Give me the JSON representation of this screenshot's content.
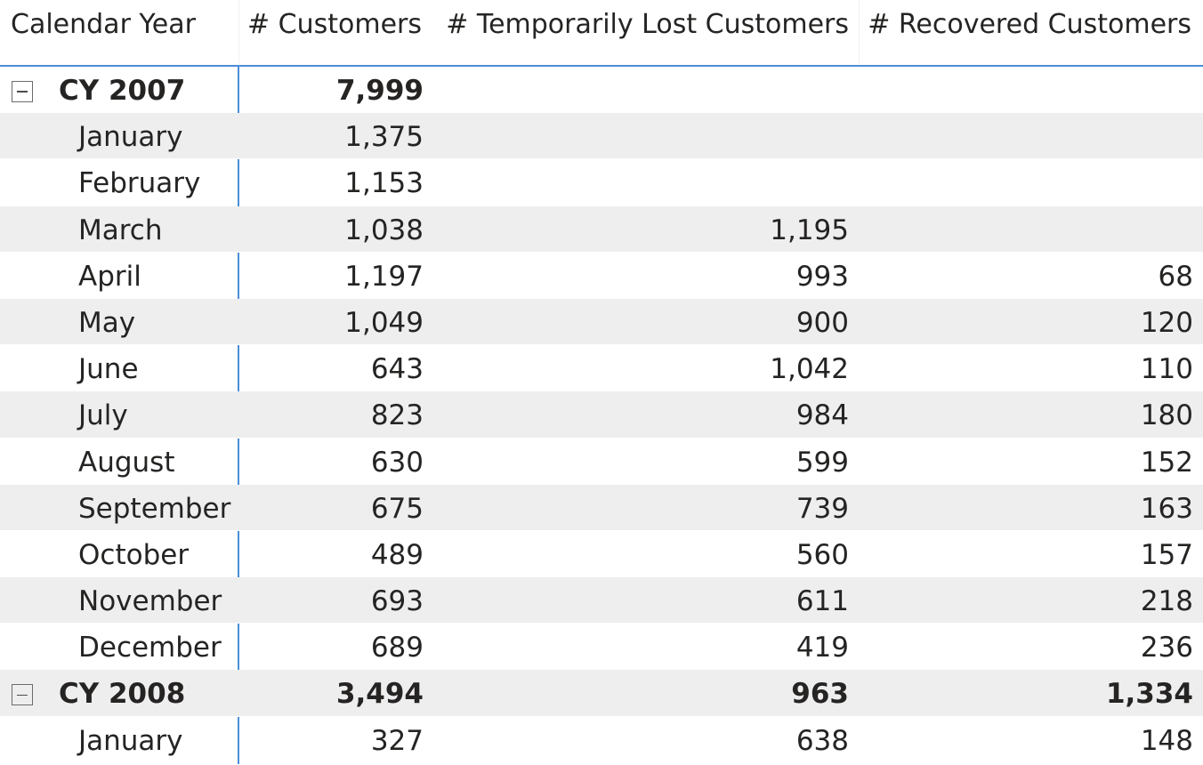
{
  "headers": {
    "calendar_year": "Calendar Year",
    "customers": "# Customers",
    "temp_lost": "# Temporarily Lost Customers",
    "recovered": "# Recovered Customers"
  },
  "rows": [
    {
      "type": "year",
      "label": "CY 2007",
      "customers": "7,999",
      "temp_lost": "",
      "recovered": ""
    },
    {
      "type": "month",
      "label": "January",
      "customers": "1,375",
      "temp_lost": "",
      "recovered": ""
    },
    {
      "type": "month",
      "label": "February",
      "customers": "1,153",
      "temp_lost": "",
      "recovered": ""
    },
    {
      "type": "month",
      "label": "March",
      "customers": "1,038",
      "temp_lost": "1,195",
      "recovered": ""
    },
    {
      "type": "month",
      "label": "April",
      "customers": "1,197",
      "temp_lost": "993",
      "recovered": "68"
    },
    {
      "type": "month",
      "label": "May",
      "customers": "1,049",
      "temp_lost": "900",
      "recovered": "120"
    },
    {
      "type": "month",
      "label": "June",
      "customers": "643",
      "temp_lost": "1,042",
      "recovered": "110"
    },
    {
      "type": "month",
      "label": "July",
      "customers": "823",
      "temp_lost": "984",
      "recovered": "180"
    },
    {
      "type": "month",
      "label": "August",
      "customers": "630",
      "temp_lost": "599",
      "recovered": "152"
    },
    {
      "type": "month",
      "label": "September",
      "customers": "675",
      "temp_lost": "739",
      "recovered": "163"
    },
    {
      "type": "month",
      "label": "October",
      "customers": "489",
      "temp_lost": "560",
      "recovered": "157"
    },
    {
      "type": "month",
      "label": "November",
      "customers": "693",
      "temp_lost": "611",
      "recovered": "218"
    },
    {
      "type": "month",
      "label": "December",
      "customers": "689",
      "temp_lost": "419",
      "recovered": "236"
    },
    {
      "type": "year",
      "label": "CY 2008",
      "customers": "3,494",
      "temp_lost": "963",
      "recovered": "1,334"
    },
    {
      "type": "month",
      "label": "January",
      "customers": "327",
      "temp_lost": "638",
      "recovered": "148"
    }
  ]
}
